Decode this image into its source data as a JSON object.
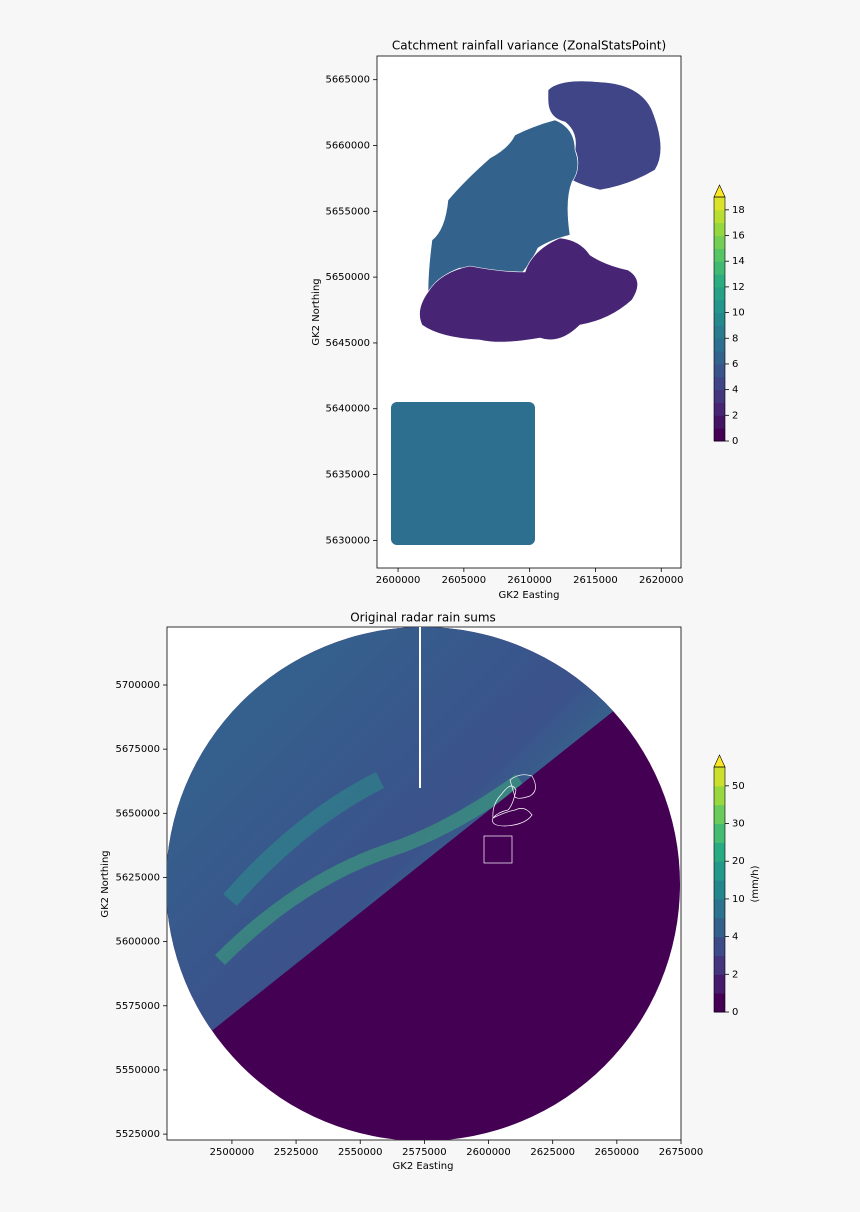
{
  "chart_data": [
    {
      "type": "choropleth",
      "title": "Catchment rainfall variance (ZonalStatsPoint)",
      "x_label": "GK2 Easting",
      "y_label": "GK2 Northing",
      "xlim": [
        2598400,
        2621500
      ],
      "ylim": [
        5627900,
        5666800
      ],
      "xticks": [
        2600000,
        2605000,
        2610000,
        2615000,
        2620000
      ],
      "yticks": [
        5630000,
        5635000,
        5640000,
        5645000,
        5650000,
        5655000,
        5660000,
        5665000
      ],
      "values": [
        4.5,
        6.5,
        2.5,
        7.5
      ],
      "colormap": "viridis",
      "colorbar": {
        "levels": [
          0,
          1,
          2,
          3,
          4,
          5,
          6,
          7,
          8,
          9,
          10,
          11,
          12,
          13,
          14,
          15,
          16,
          17,
          18
        ],
        "ticks": [
          0,
          2,
          4,
          6,
          8,
          10,
          12,
          14,
          16,
          18
        ]
      }
    },
    {
      "type": "raster",
      "title": "Original radar rain sums",
      "x_label": "GK2 Easting",
      "y_label": "GK2 Northing",
      "xlim": [
        2474700,
        2675000
      ],
      "ylim": [
        5522700,
        5722600
      ],
      "xticks": [
        2500000,
        2525000,
        2550000,
        2575000,
        2600000,
        2625000,
        2650000,
        2675000
      ],
      "yticks": [
        5525000,
        5550000,
        5575000,
        5600000,
        5625000,
        5650000,
        5675000,
        5700000
      ],
      "colormap": "viridis",
      "colorbar": {
        "label": "(mm/h)",
        "levels": [
          0,
          1,
          2,
          3,
          4,
          7,
          10,
          15,
          20,
          25,
          30,
          40,
          50
        ],
        "ticks": [
          0,
          2,
          4,
          10,
          20,
          30,
          50
        ]
      }
    }
  ]
}
